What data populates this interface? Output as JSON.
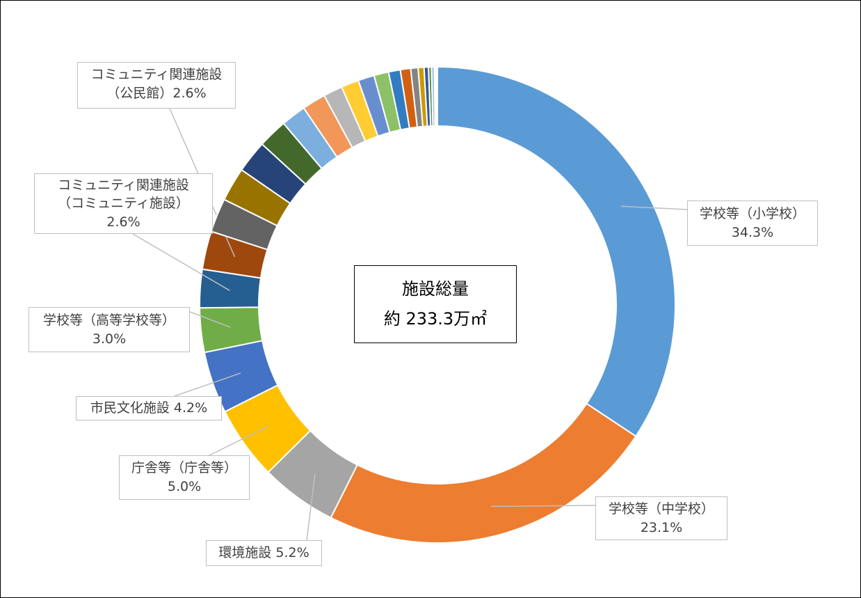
{
  "chart_data": {
    "type": "pie",
    "donut": true,
    "center_text": [
      "施設総量",
      "約 233.3万㎡"
    ],
    "categories": [
      "学校等（小学校）",
      "学校等（中学校）",
      "環境施設",
      "庁舎等（庁舎等）",
      "市民文化施設",
      "学校等（高等学校等）",
      "コミュニティ関連施設\n（コミュニティ施設）",
      "コミュニティ関連施設\n（公民館）",
      null,
      null,
      null,
      null,
      null,
      null,
      null,
      null,
      null,
      null,
      null,
      null,
      null,
      null,
      null,
      null,
      null,
      null,
      null
    ],
    "values": [
      34.3,
      23.1,
      5.2,
      5.0,
      4.2,
      3.0,
      2.6,
      2.6,
      2.3,
      2.3,
      2.2,
      2.0,
      1.7,
      1.6,
      1.3,
      1.2,
      1.1,
      1.0,
      0.8,
      0.7,
      0.5,
      0.4,
      0.3,
      0.2,
      0.2,
      0.1,
      0.1
    ],
    "value_labels": [
      "34.3%",
      "23.1%",
      "5.2%",
      "5.0%",
      "4.2%",
      "3.0%",
      "2.6%",
      "2.6%",
      null,
      null,
      null,
      null,
      null,
      null,
      null,
      null,
      null,
      null,
      null,
      null,
      null,
      null,
      null,
      null,
      null,
      null,
      null
    ],
    "colors": [
      "#5b9bd5",
      "#ed7d31",
      "#a5a5a5",
      "#ffc000",
      "#4472c4",
      "#70ad47",
      "#255e91",
      "#9e480e",
      "#636363",
      "#997300",
      "#264478",
      "#43682b",
      "#7cafdd",
      "#f1975a",
      "#b7b7b7",
      "#ffcd33",
      "#698ed0",
      "#8cc168",
      "#327dc2",
      "#d26012",
      "#848484",
      "#cc9a00",
      "#335aa1",
      "#5a8a39",
      "#9dc3e6",
      "#f4b183",
      "#c9c9c9"
    ]
  }
}
